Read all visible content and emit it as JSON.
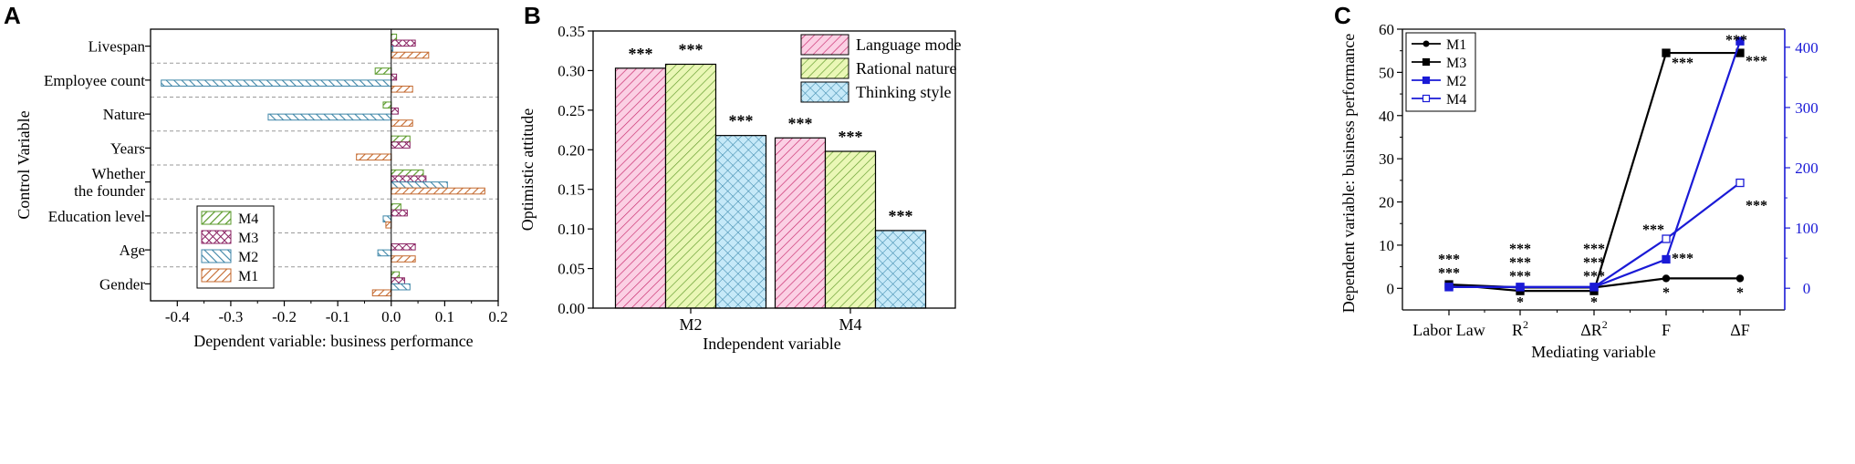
{
  "chart_data": [
    {
      "panel": "A",
      "type": "bar",
      "orientation": "horizontal",
      "xlabel": "Dependent variable: business performance",
      "ylabel": "Control Variable",
      "xlim": [
        -0.45,
        0.2
      ],
      "xticks": [
        "-0.4",
        "-0.3",
        "-0.2",
        "-0.1",
        "0.0",
        "0.1",
        "0.2"
      ],
      "xtick_values": [
        -0.4,
        -0.3,
        -0.2,
        -0.1,
        0.0,
        0.1,
        0.2
      ],
      "categories": [
        "Livespan",
        "Employee count",
        "Nature",
        "Years",
        "Whether the founder",
        "Education level",
        "Age",
        "Gender"
      ],
      "category_lines": [
        [
          "Livespan"
        ],
        [
          "Employee count"
        ],
        [
          "Nature"
        ],
        [
          "Years"
        ],
        [
          "Whether",
          "the founder"
        ],
        [
          "Education level"
        ],
        [
          "Age"
        ],
        [
          "Gender"
        ]
      ],
      "series": [
        {
          "name": "M4",
          "color": "#5a9a2a",
          "pattern": "green-diag",
          "values": [
            0.01,
            -0.03,
            -0.015,
            0.035,
            0.06,
            0.018,
            0.0,
            0.015
          ]
        },
        {
          "name": "M3",
          "color": "#8a2262",
          "pattern": "purple-cross",
          "values": [
            0.045,
            0.01,
            0.013,
            0.035,
            0.065,
            0.03,
            0.045,
            0.025
          ]
        },
        {
          "name": "M2",
          "color": "#3f86a8",
          "pattern": "blue-diag",
          "values": [
            0.003,
            -0.43,
            -0.23,
            0.0,
            0.105,
            -0.015,
            -0.025,
            0.035
          ]
        },
        {
          "name": "M1",
          "color": "#c4692e",
          "pattern": "orange-diag",
          "values": [
            0.07,
            0.04,
            0.04,
            -0.065,
            0.175,
            -0.01,
            0.045,
            -0.035
          ]
        }
      ],
      "legend": [
        "M4",
        "M3",
        "M2",
        "M1"
      ]
    },
    {
      "panel": "B",
      "type": "bar",
      "xlabel": "Independent variable",
      "ylabel": "Optimistic attitude",
      "ylim": [
        0.0,
        0.35
      ],
      "yticks": [
        "0.00",
        "0.05",
        "0.10",
        "0.15",
        "0.20",
        "0.25",
        "0.30",
        "0.35"
      ],
      "ytick_values": [
        0.0,
        0.05,
        0.1,
        0.15,
        0.2,
        0.25,
        0.3,
        0.35
      ],
      "categories": [
        "M2",
        "M4"
      ],
      "series": [
        {
          "name": "Language mode",
          "color": "#d63e7f",
          "fill": "#fbd0e4",
          "pattern": "pink-diag",
          "values": [
            0.303,
            0.215
          ],
          "labels": [
            "***",
            "***"
          ]
        },
        {
          "name": "Rational nature",
          "color": "#5f9a29",
          "fill": "#eaf7b6",
          "pattern": "lime-diag",
          "values": [
            0.308,
            0.198
          ],
          "labels": [
            "***",
            "***"
          ]
        },
        {
          "name": "Thinking style",
          "color": "#3d8aae",
          "fill": "#c6e9f8",
          "pattern": "cyan-cross",
          "values": [
            0.218,
            0.098
          ],
          "labels": [
            "***",
            "***"
          ]
        }
      ]
    },
    {
      "panel": "C",
      "type": "line",
      "xlabel": "Mediating variable",
      "ylabel": "Dependent variable: business performance",
      "categories": [
        "Labor Law",
        "R²",
        "ΔR²",
        "F",
        "ΔF"
      ],
      "category_lines": [
        [
          "Labor Law",
          ""
        ],
        [
          "R",
          "2"
        ],
        [
          "ΔR",
          "2"
        ],
        [
          "F",
          ""
        ],
        [
          "ΔF",
          ""
        ]
      ],
      "ylim": [
        -5,
        60
      ],
      "yticks": [
        "0",
        "10",
        "20",
        "30",
        "40",
        "50",
        "60"
      ],
      "ytick_values": [
        0,
        10,
        20,
        30,
        40,
        50,
        60
      ],
      "y2lim": [
        -36,
        430
      ],
      "y2ticks": [
        "0",
        "100",
        "200",
        "300",
        "400"
      ],
      "y2tick_values": [
        0,
        100,
        200,
        300,
        400
      ],
      "series": [
        {
          "name": "M1",
          "axis": "left",
          "color": "#000000",
          "marker": "circle",
          "filled": true,
          "values": [
            0.9,
            0.2,
            0.2,
            2.3,
            2.3
          ]
        },
        {
          "name": "M3",
          "axis": "left",
          "color": "#000000",
          "marker": "square",
          "filled": true,
          "values": [
            0.9,
            -0.6,
            -0.6,
            54.5,
            54.5
          ]
        },
        {
          "name": "M2",
          "axis": "right",
          "color": "#1a1ad6",
          "marker": "square",
          "filled": true,
          "values": [
            2,
            2,
            2,
            48,
            410
          ]
        },
        {
          "name": "M4",
          "axis": "right",
          "color": "#1a1ad6",
          "marker": "square",
          "filled": false,
          "values": [
            2,
            2,
            2,
            82,
            175
          ]
        }
      ],
      "annotations": [
        {
          "category": "Labor Law",
          "y": 2.5,
          "lines": [
            "***",
            "***"
          ],
          "pos": "above"
        },
        {
          "category": "R²",
          "y": 1.8,
          "lines": [
            "***",
            "***",
            "***"
          ],
          "pos": "above"
        },
        {
          "category": "ΔR²",
          "y": 1.8,
          "lines": [
            "***",
            "***",
            "***"
          ],
          "pos": "above"
        },
        {
          "category": "R²",
          "y": -0.9,
          "lines": [
            "*"
          ],
          "pos": "below"
        },
        {
          "category": "ΔR²",
          "y": -0.9,
          "lines": [
            "*"
          ],
          "pos": "below"
        },
        {
          "category": "F",
          "y": 1.3,
          "lines": [
            "*"
          ],
          "pos": "below"
        },
        {
          "category": "ΔF",
          "y": 1.3,
          "lines": [
            "*"
          ],
          "pos": "below"
        },
        {
          "category": "F",
          "y": 52.2,
          "lines": [
            "***"
          ],
          "pos": "right"
        },
        {
          "category": "F",
          "y": 12.5,
          "lines": [
            "***"
          ],
          "pos": "left"
        },
        {
          "category": "F",
          "y": 6.9,
          "lines": [
            "***"
          ],
          "pos": "right"
        },
        {
          "category": "ΔF",
          "y": 56.4,
          "lines": [
            "***"
          ],
          "pos": "above-left"
        },
        {
          "category": "ΔF",
          "y": 52.6,
          "lines": [
            "***"
          ],
          "pos": "right"
        },
        {
          "category": "ΔF",
          "y": 19.2,
          "lines": [
            "***"
          ],
          "pos": "right"
        }
      ]
    }
  ],
  "panels": {
    "a": "A",
    "b": "B",
    "c": "C"
  }
}
